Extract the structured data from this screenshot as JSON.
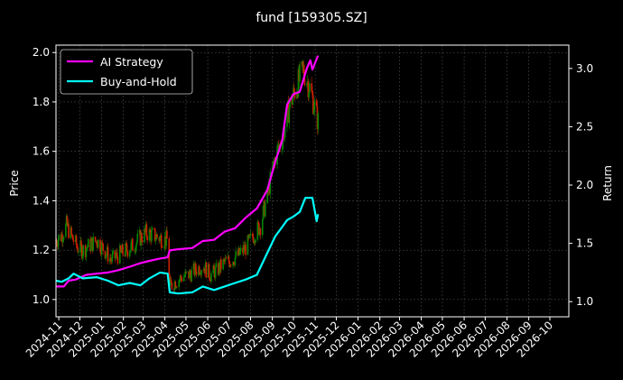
{
  "chart_data": {
    "type": "line",
    "title": "fund [159305.SZ]",
    "ylabel_left": "Price",
    "ylabel_right": "Return",
    "ylim_left": [
      0.93,
      2.03
    ],
    "ylim_right": [
      0.87,
      3.2
    ],
    "yticks_left": [
      "1.0",
      "1.2",
      "1.4",
      "1.6",
      "1.8",
      "2.0"
    ],
    "yticks_right": [
      "1.0",
      "1.5",
      "2.0",
      "2.5",
      "3.0"
    ],
    "x_start": "2024-10-28",
    "x_end": "2026-10-28",
    "xticks": [
      "2024-11",
      "2024-12",
      "2025-01",
      "2025-02",
      "2025-03",
      "2025-04",
      "2025-05",
      "2025-06",
      "2025-07",
      "2025-08",
      "2025-09",
      "2025-10",
      "2025-11",
      "2025-12",
      "2026-01",
      "2026-02",
      "2026-03",
      "2026-04",
      "2026-05",
      "2026-06",
      "2026-07",
      "2026-08",
      "2026-09",
      "2026-10"
    ],
    "grid": true,
    "legend_position": "top-left",
    "series": [
      {
        "name": "AI Strategy",
        "color": "#ff00ff",
        "axis": "right",
        "points": [
          [
            "2024-10-28",
            1.13
          ],
          [
            "2024-11-08",
            1.13
          ],
          [
            "2024-11-15",
            1.18
          ],
          [
            "2024-11-25",
            1.19
          ],
          [
            "2024-12-10",
            1.23
          ],
          [
            "2024-12-25",
            1.24
          ],
          [
            "2025-01-10",
            1.25
          ],
          [
            "2025-01-25",
            1.27
          ],
          [
            "2025-02-10",
            1.3
          ],
          [
            "2025-02-25",
            1.33
          ],
          [
            "2025-03-10",
            1.35
          ],
          [
            "2025-03-25",
            1.37
          ],
          [
            "2025-04-05",
            1.38
          ],
          [
            "2025-04-08",
            1.44
          ],
          [
            "2025-04-20",
            1.45
          ],
          [
            "2025-05-10",
            1.46
          ],
          [
            "2025-05-25",
            1.52
          ],
          [
            "2025-06-10",
            1.53
          ],
          [
            "2025-06-25",
            1.6
          ],
          [
            "2025-07-10",
            1.63
          ],
          [
            "2025-07-25",
            1.72
          ],
          [
            "2025-08-10",
            1.8
          ],
          [
            "2025-08-25",
            1.96
          ],
          [
            "2025-09-05",
            2.2
          ],
          [
            "2025-09-15",
            2.38
          ],
          [
            "2025-09-22",
            2.69
          ],
          [
            "2025-10-01",
            2.78
          ],
          [
            "2025-10-10",
            2.8
          ],
          [
            "2025-10-20",
            3.0
          ],
          [
            "2025-10-25",
            3.07
          ],
          [
            "2025-10-28",
            2.99
          ],
          [
            "2025-11-05",
            3.11
          ]
        ]
      },
      {
        "name": "Buy-and-Hold",
        "color": "#00ffff",
        "axis": "right",
        "points": [
          [
            "2024-10-28",
            1.18
          ],
          [
            "2024-11-05",
            1.17
          ],
          [
            "2024-11-15",
            1.2
          ],
          [
            "2024-11-22",
            1.24
          ],
          [
            "2024-12-05",
            1.2
          ],
          [
            "2024-12-25",
            1.21
          ],
          [
            "2025-01-10",
            1.18
          ],
          [
            "2025-01-25",
            1.14
          ],
          [
            "2025-02-10",
            1.16
          ],
          [
            "2025-02-25",
            1.14
          ],
          [
            "2025-03-10",
            1.2
          ],
          [
            "2025-03-25",
            1.25
          ],
          [
            "2025-04-05",
            1.24
          ],
          [
            "2025-04-08",
            1.08
          ],
          [
            "2025-04-20",
            1.07
          ],
          [
            "2025-05-10",
            1.08
          ],
          [
            "2025-05-25",
            1.13
          ],
          [
            "2025-06-10",
            1.1
          ],
          [
            "2025-06-25",
            1.13
          ],
          [
            "2025-07-10",
            1.16
          ],
          [
            "2025-07-25",
            1.19
          ],
          [
            "2025-08-10",
            1.23
          ],
          [
            "2025-08-25",
            1.42
          ],
          [
            "2025-09-05",
            1.56
          ],
          [
            "2025-09-15",
            1.64
          ],
          [
            "2025-09-22",
            1.7
          ],
          [
            "2025-10-01",
            1.73
          ],
          [
            "2025-10-10",
            1.77
          ],
          [
            "2025-10-18",
            1.89
          ],
          [
            "2025-10-28",
            1.89
          ],
          [
            "2025-11-03",
            1.69
          ],
          [
            "2025-11-05",
            1.75
          ]
        ]
      }
    ],
    "candles": {
      "axis": "left",
      "up_color": "#008800",
      "down_color": "#cc2200",
      "points": [
        [
          "2024-10-28",
          1.24
        ],
        [
          "2024-11-05",
          1.26
        ],
        [
          "2024-11-12",
          1.3
        ],
        [
          "2024-11-20",
          1.25
        ],
        [
          "2024-11-28",
          1.21
        ],
        [
          "2024-12-05",
          1.2
        ],
        [
          "2024-12-15",
          1.22
        ],
        [
          "2024-12-25",
          1.24
        ],
        [
          "2025-01-05",
          1.2
        ],
        [
          "2025-01-15",
          1.16
        ],
        [
          "2025-01-25",
          1.18
        ],
        [
          "2025-02-05",
          1.2
        ],
        [
          "2025-02-15",
          1.22
        ],
        [
          "2025-02-25",
          1.25
        ],
        [
          "2025-03-05",
          1.27
        ],
        [
          "2025-03-15",
          1.26
        ],
        [
          "2025-03-25",
          1.25
        ],
        [
          "2025-04-05",
          1.24
        ],
        [
          "2025-04-08",
          1.05
        ],
        [
          "2025-04-15",
          1.07
        ],
        [
          "2025-04-25",
          1.09
        ],
        [
          "2025-05-05",
          1.1
        ],
        [
          "2025-05-15",
          1.12
        ],
        [
          "2025-05-25",
          1.14
        ],
        [
          "2025-06-05",
          1.1
        ],
        [
          "2025-06-15",
          1.12
        ],
        [
          "2025-06-25",
          1.15
        ],
        [
          "2025-07-05",
          1.16
        ],
        [
          "2025-07-15",
          1.18
        ],
        [
          "2025-07-25",
          1.21
        ],
        [
          "2025-08-05",
          1.26
        ],
        [
          "2025-08-15",
          1.3
        ],
        [
          "2025-08-25",
          1.42
        ],
        [
          "2025-09-05",
          1.58
        ],
        [
          "2025-09-15",
          1.65
        ],
        [
          "2025-09-25",
          1.78
        ],
        [
          "2025-10-05",
          1.86
        ],
        [
          "2025-10-15",
          1.93
        ],
        [
          "2025-10-25",
          1.85
        ],
        [
          "2025-11-05",
          1.72
        ]
      ]
    }
  }
}
